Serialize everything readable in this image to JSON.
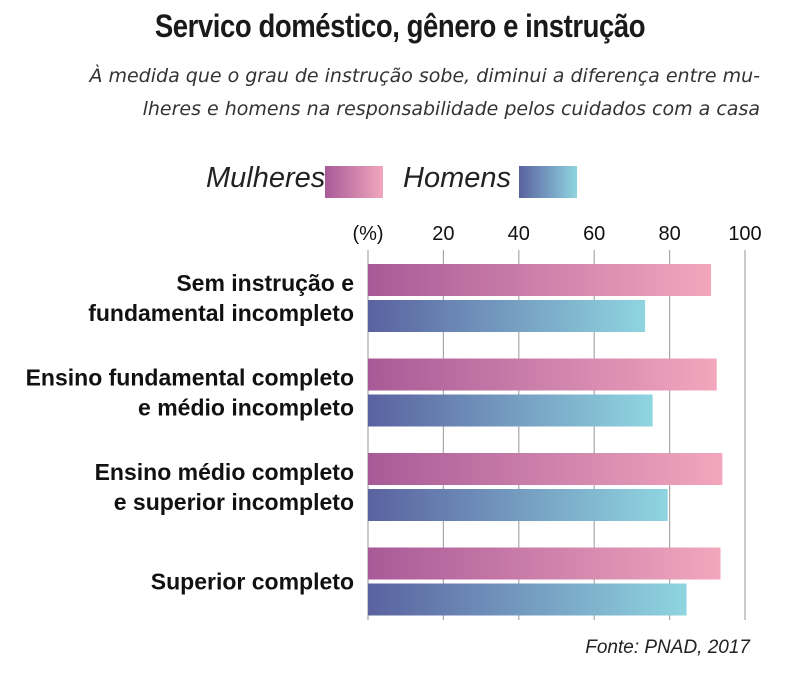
{
  "title": "Servico doméstico, gênero e instrução",
  "subtitle_lines": [
    "À medida que o grau de instrução sobe, diminui a diferença entre mu-",
    "lheres e homens na responsabilidade pelos cuidados com a casa"
  ],
  "source": "Fonte: PNAD, 2017",
  "colors": {
    "mulheres_start": "#a85a98",
    "mulheres_end": "#f2a7bd",
    "homens_start": "#5a62a0",
    "homens_end": "#8fd5e0"
  },
  "chart_data": {
    "type": "bar",
    "orientation": "horizontal",
    "unit_label": "(%)",
    "xlim": [
      0,
      100
    ],
    "xticks": [
      20,
      40,
      60,
      80,
      100
    ],
    "grid": true,
    "legend_position": "top",
    "categories": [
      [
        "Sem instrução e",
        "fundamental incompleto"
      ],
      [
        "Ensino fundamental completo",
        "e médio incompleto"
      ],
      [
        "Ensino médio completo",
        "e superior incompleto"
      ],
      [
        "Superior completo"
      ]
    ],
    "series": [
      {
        "name": "Mulheres",
        "values": [
          91,
          92.5,
          94,
          93.5
        ]
      },
      {
        "name": "Homens",
        "values": [
          73.5,
          75.5,
          79.5,
          84.5
        ]
      }
    ]
  }
}
